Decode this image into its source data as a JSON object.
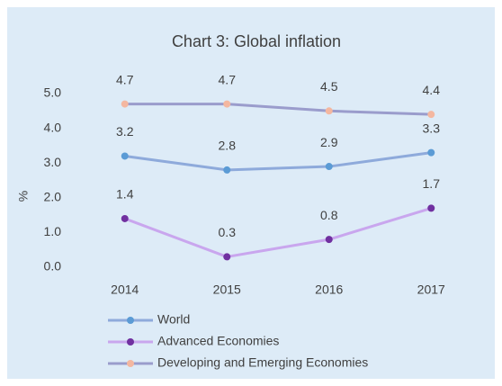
{
  "chart_data": {
    "type": "line",
    "title": "Chart 3: Global inflation",
    "ylabel": "%",
    "categories": [
      "2014",
      "2015",
      "2016",
      "2017"
    ],
    "series": [
      {
        "name": "World",
        "color": "#8eaadb",
        "marker_color": "#5b9bd5",
        "values": [
          3.2,
          2.8,
          2.9,
          3.3
        ]
      },
      {
        "name": "Advanced Economies",
        "color": "#c9a6ee",
        "marker_color": "#7030a0",
        "values": [
          1.4,
          0.3,
          0.8,
          1.7
        ]
      },
      {
        "name": "Developing and Emerging Economies",
        "color": "#9a9ccc",
        "marker_color": "#f4b7a0",
        "values": [
          4.7,
          4.7,
          4.5,
          4.4
        ]
      }
    ],
    "ylim": [
      0,
      5
    ],
    "yticks": [
      {
        "value": 0,
        "label": "0.0"
      },
      {
        "value": 1,
        "label": "1.0"
      },
      {
        "value": 2,
        "label": "2.0"
      },
      {
        "value": 3,
        "label": "3.0"
      },
      {
        "value": 4,
        "label": "4.0"
      },
      {
        "value": 5,
        "label": "5.0"
      }
    ],
    "grid": false,
    "data_labels": true,
    "legend": "bottom"
  }
}
